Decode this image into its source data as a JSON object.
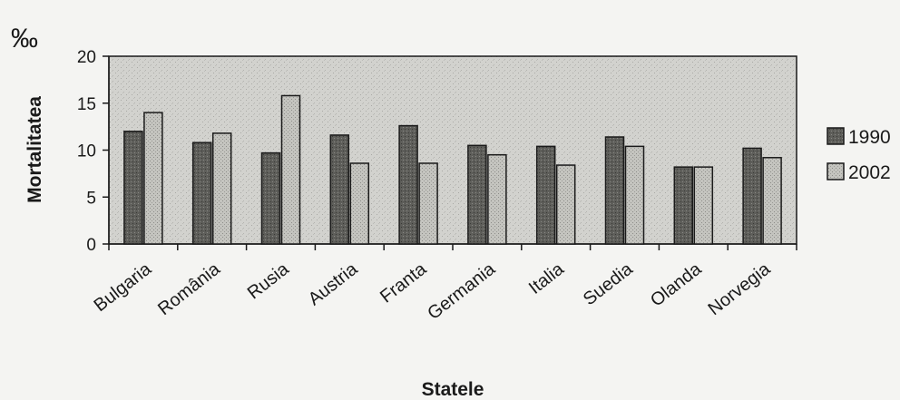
{
  "chart_data": {
    "type": "bar",
    "title": "",
    "unit_label": "‰",
    "xlabel": "Statele",
    "ylabel": "Mortalitatea",
    "ylim": [
      0,
      20
    ],
    "yticks": [
      0,
      5,
      10,
      15,
      20
    ],
    "categories": [
      "Bulgaria",
      "România",
      "Rusia",
      "Austria",
      "Franta",
      "Germania",
      "Italia",
      "Suedia",
      "Olanda",
      "Norvegia"
    ],
    "series": [
      {
        "name": "1990",
        "values": [
          12.0,
          10.8,
          9.7,
          11.6,
          12.6,
          10.5,
          10.4,
          11.4,
          8.2,
          10.2
        ]
      },
      {
        "name": "2002",
        "values": [
          14.0,
          11.8,
          15.8,
          8.6,
          8.6,
          9.5,
          8.4,
          10.4,
          8.2,
          9.2
        ]
      }
    ],
    "grid": false,
    "legend_position": "right",
    "colors": {
      "plot_background": "#cfcfcb",
      "series_1990": "#5e5e5a",
      "series_2002": "#c2c2bd",
      "border": "#1a1a1a"
    }
  }
}
